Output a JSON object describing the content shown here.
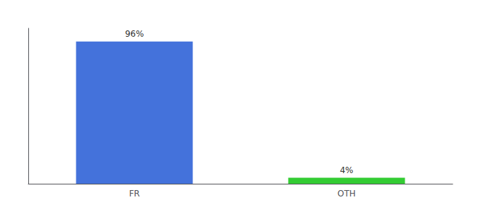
{
  "chart_data": {
    "type": "bar",
    "categories": [
      "FR",
      "OTH"
    ],
    "values": [
      96,
      4
    ],
    "value_labels": [
      "96%",
      "4%"
    ],
    "data_labels": true,
    "colors": [
      "#4472db",
      "#33cc33"
    ],
    "ylim": [
      0,
      105
    ],
    "grid": false,
    "tick_labels": "x"
  }
}
